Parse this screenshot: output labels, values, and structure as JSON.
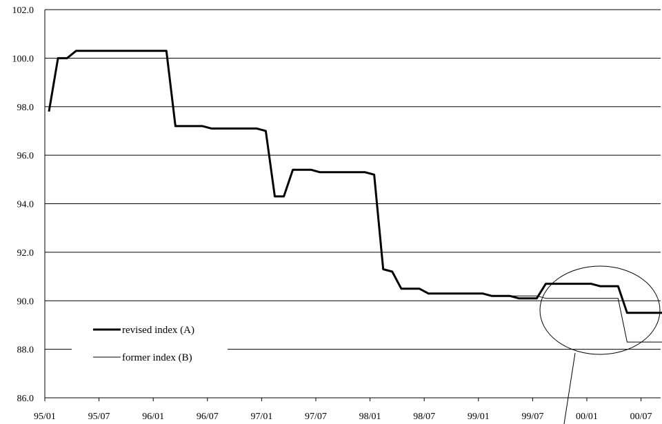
{
  "chart_data": {
    "type": "line",
    "ylim": [
      86.0,
      102.0
    ],
    "y_ticks": [
      "86.0",
      "88.0",
      "90.0",
      "92.0",
      "94.0",
      "96.0",
      "98.0",
      "100.0",
      "102.0"
    ],
    "y_tick_values": [
      86,
      88,
      90,
      92,
      94,
      96,
      98,
      100,
      102
    ],
    "x_tick_labels": [
      "95/01",
      "95/07",
      "96/01",
      "96/07",
      "97/01",
      "97/07",
      "98/01",
      "98/07",
      "99/01",
      "99/07",
      "00/01",
      "00/07"
    ],
    "grid": "horizontal",
    "legend_position": "bottom-left",
    "series": [
      {
        "name": "revised index (A)",
        "color": "#000000",
        "values": [
          97.8,
          100.0,
          100.0,
          100.3,
          100.3,
          100.3,
          100.3,
          100.3,
          100.3,
          100.3,
          100.3,
          100.3,
          100.3,
          100.3,
          97.2,
          97.2,
          97.2,
          97.2,
          97.1,
          97.1,
          97.1,
          97.1,
          97.1,
          97.1,
          97.0,
          94.3,
          94.3,
          95.4,
          95.4,
          95.4,
          95.3,
          95.3,
          95.3,
          95.3,
          95.3,
          95.3,
          95.2,
          91.3,
          91.2,
          90.5,
          90.5,
          90.5,
          90.3,
          90.3,
          90.3,
          90.3,
          90.3,
          90.3,
          90.3,
          90.2,
          90.2,
          90.2,
          90.1,
          90.1,
          90.1,
          90.7,
          90.7,
          90.7,
          90.7,
          90.7,
          90.7,
          90.6,
          90.6,
          90.6,
          89.5,
          89.5,
          89.5,
          89.5,
          89.5
        ]
      },
      {
        "name": "former index (B)",
        "color": "#000000",
        "values": [
          97.8,
          100.0,
          100.0,
          100.3,
          100.3,
          100.3,
          100.3,
          100.3,
          100.3,
          100.3,
          100.3,
          100.3,
          100.3,
          100.3,
          97.2,
          97.2,
          97.2,
          97.2,
          97.1,
          97.1,
          97.1,
          97.1,
          97.1,
          97.1,
          97.0,
          94.3,
          94.3,
          95.4,
          95.4,
          95.4,
          95.3,
          95.3,
          95.3,
          95.3,
          95.3,
          95.3,
          95.2,
          91.3,
          91.2,
          90.5,
          90.5,
          90.5,
          90.3,
          90.3,
          90.3,
          90.3,
          90.3,
          90.3,
          90.3,
          90.2,
          90.2,
          90.2,
          90.2,
          90.2,
          90.2,
          90.1,
          90.1,
          90.1,
          90.1,
          90.1,
          90.1,
          90.1,
          90.1,
          90.1,
          88.3,
          88.3,
          88.3,
          88.3,
          88.3
        ]
      }
    ]
  }
}
